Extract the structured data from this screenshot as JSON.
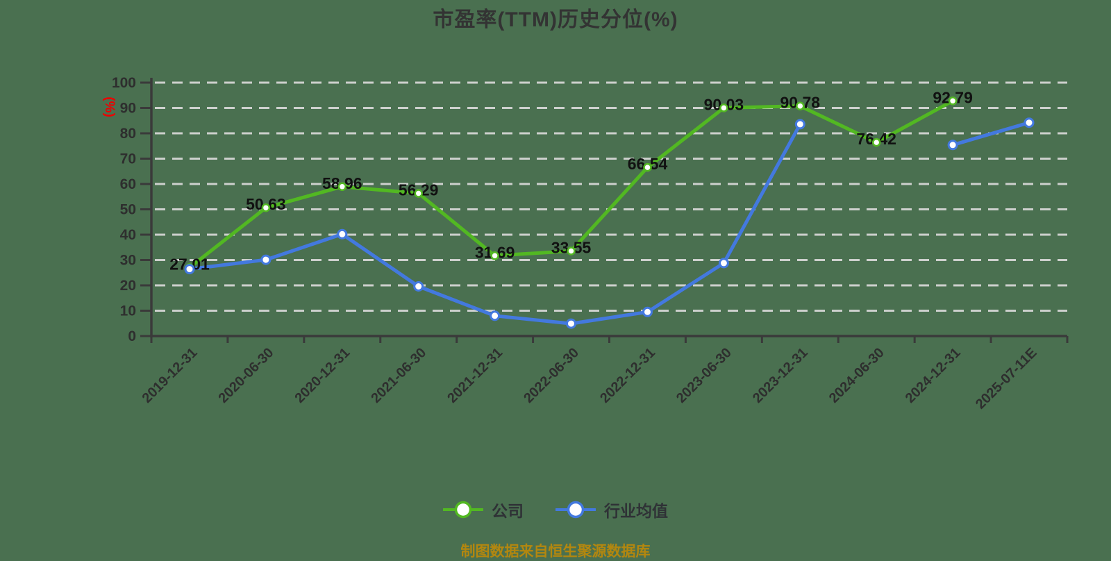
{
  "title": "市盈率(TTM)历史分位(%)",
  "y_axis_name": "(%)",
  "footer": "制图数据来自恒生聚源数据库",
  "legend": [
    {
      "label": "公司",
      "color": "#52b822"
    },
    {
      "label": "行业均值",
      "color": "#4379df"
    }
  ],
  "colors": {
    "background": "#4a7050",
    "grid": "#cdd0cd",
    "axis": "#3a3a3a",
    "tick_label": "#2e2e2e",
    "value_label": "#111111",
    "title": "#333333",
    "y_axis_name": "#ee0000",
    "footer": "#b3870f",
    "legend_text": "#2f3236",
    "marker_fill": "#ffffff"
  },
  "chart_data": {
    "type": "line",
    "title": "市盈率(TTM)历史分位(%)",
    "ylabel": "(%)",
    "ylim": [
      0,
      100
    ],
    "y_tick_interval": 10,
    "grid": "horizontal-dashed",
    "legend_position": "bottom",
    "categories": [
      "2019-12-31",
      "2020-06-30",
      "2020-12-31",
      "2021-06-30",
      "2021-12-31",
      "2022-06-30",
      "2022-12-31",
      "2023-06-30",
      "2023-12-31",
      "2024-06-30",
      "2024-12-31",
      "2025-07-11E"
    ],
    "series": [
      {
        "name": "公司",
        "color": "#52b822",
        "show_labels": true,
        "values": [
          27.01,
          50.63,
          58.96,
          56.29,
          31.69,
          33.55,
          66.54,
          90.03,
          90.78,
          76.42,
          92.79,
          null
        ]
      },
      {
        "name": "行业均值",
        "color": "#4379df",
        "show_labels": false,
        "values": [
          26.4,
          30.1,
          40.2,
          19.6,
          8.0,
          4.9,
          9.5,
          28.8,
          83.6,
          null,
          75.4,
          84.2
        ]
      }
    ]
  }
}
